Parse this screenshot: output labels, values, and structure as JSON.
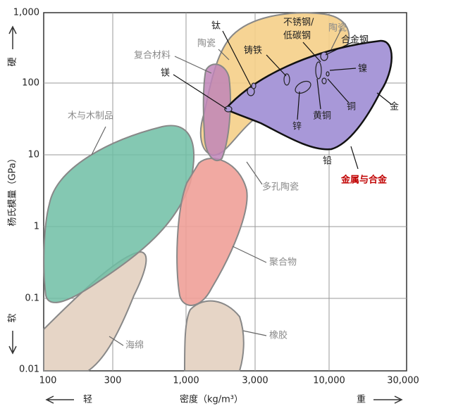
{
  "y_axis": {
    "title": "杨氏模量（GPa）",
    "hard": "硬",
    "soft": "软",
    "ticks": [
      "1,000",
      "100",
      "10",
      "1",
      "0.1",
      "0.01"
    ]
  },
  "x_axis": {
    "title": "密度（kg/m³）",
    "light": "轻",
    "heavy": "重",
    "ticks": [
      "100",
      "300",
      "1,000",
      "3,000",
      "10,000",
      "30,000"
    ]
  },
  "labels": {
    "ceramics_top": "陶瓷",
    "ceramics": "陶瓷",
    "composites": "复合材料",
    "magnesium": "镁",
    "titanium": "钛",
    "stainless": "不锈钢/",
    "mild_steel": "低碳钢",
    "cast_iron": "铸铁",
    "alloy_steel": "合金钢",
    "nickel": "镍",
    "copper": "铜",
    "gold": "金",
    "brass": "黄铜",
    "zinc": "锌",
    "lead": "铅",
    "metals": "金属与合金",
    "wood": "木与木制品",
    "porous_ceramics": "多孔陶瓷",
    "polymers": "聚合物",
    "foams": "海绵",
    "rubber": "橡胶"
  }
}
